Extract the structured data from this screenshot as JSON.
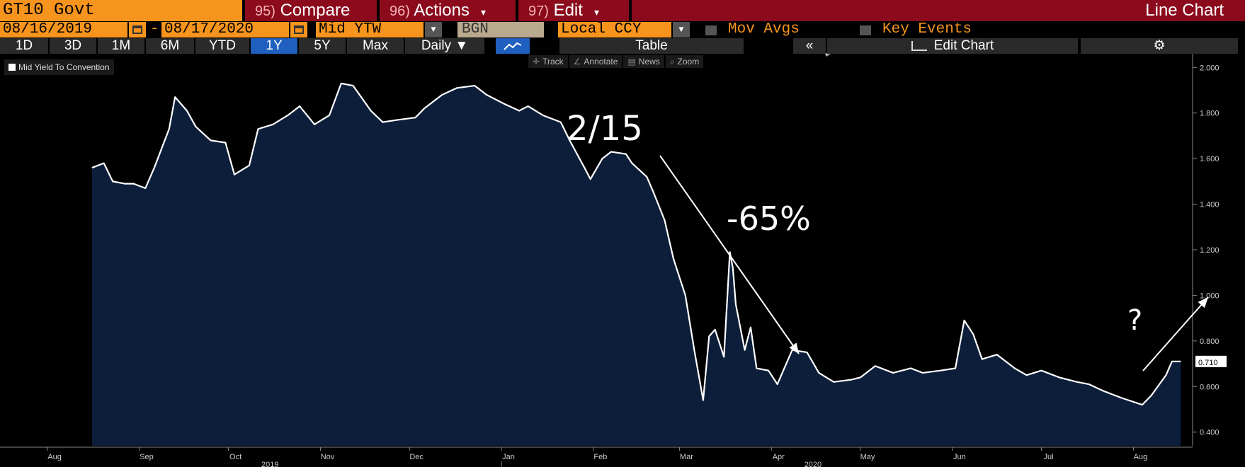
{
  "header": {
    "ticker": "GT10 Govt",
    "compare": {
      "num": "95)",
      "label": "Compare"
    },
    "actions": {
      "num": "96)",
      "label": "Actions"
    },
    "edit": {
      "num": "97)",
      "label": "Edit"
    },
    "caret": "▾",
    "title": "Line Chart"
  },
  "params": {
    "start_date": "08/16/2019",
    "dash": "-",
    "end_date": "08/17/2020",
    "field": "Mid YTW",
    "source": "BGN",
    "currency": "Local CCY",
    "mov_avgs": "Mov Avgs",
    "key_events": "Key Events",
    "caret": "▼"
  },
  "tabs": {
    "periods": [
      "1D",
      "3D",
      "1M",
      "6M",
      "YTD",
      "1Y",
      "5Y",
      "Max"
    ],
    "active": "1Y",
    "frequency": "Daily ▼",
    "table": "Table",
    "collapse": "«",
    "edit_chart": "Edit Chart",
    "gear": "⚙"
  },
  "tools": {
    "track": "Track",
    "annotate": "Annotate",
    "news": "News",
    "zoom": "Zoom"
  },
  "annotations": {
    "date": "2/15",
    "pct": "-65%",
    "question": "?"
  },
  "colors": {
    "accent_orange": "#f7941d",
    "menu_red": "#8b0a1c",
    "active_tab": "#1f5fbf",
    "chart_fill": "#0c1e3a",
    "line": "#ffffff"
  },
  "chart_data": {
    "type": "area",
    "series": [
      {
        "name": "Mid Yield To Convention",
        "x": [
          "2019-08-16",
          "2019-08-20",
          "2019-08-23",
          "2019-08-27",
          "2019-08-30",
          "2019-09-03",
          "2019-09-06",
          "2019-09-11",
          "2019-09-13",
          "2019-09-17",
          "2019-09-20",
          "2019-09-25",
          "2019-09-30",
          "2019-10-03",
          "2019-10-08",
          "2019-10-11",
          "2019-10-16",
          "2019-10-21",
          "2019-10-25",
          "2019-10-30",
          "2019-11-04",
          "2019-11-08",
          "2019-11-12",
          "2019-11-18",
          "2019-11-22",
          "2019-11-27",
          "2019-12-03",
          "2019-12-06",
          "2019-12-12",
          "2019-12-17",
          "2019-12-23",
          "2019-12-27",
          "2020-01-02",
          "2020-01-07",
          "2020-01-10",
          "2020-01-15",
          "2020-01-21",
          "2020-01-24",
          "2020-01-29",
          "2020-01-31",
          "2020-02-04",
          "2020-02-07",
          "2020-02-12",
          "2020-02-14",
          "2020-02-19",
          "2020-02-21",
          "2020-02-25",
          "2020-02-28",
          "2020-03-03",
          "2020-03-06",
          "2020-03-09",
          "2020-03-11",
          "2020-03-13",
          "2020-03-16",
          "2020-03-18",
          "2020-03-19",
          "2020-03-20",
          "2020-03-23",
          "2020-03-25",
          "2020-03-27",
          "2020-03-31",
          "2020-04-03",
          "2020-04-08",
          "2020-04-13",
          "2020-04-17",
          "2020-04-22",
          "2020-04-28",
          "2020-05-01",
          "2020-05-06",
          "2020-05-12",
          "2020-05-18",
          "2020-05-22",
          "2020-05-28",
          "2020-06-02",
          "2020-06-05",
          "2020-06-08",
          "2020-06-11",
          "2020-06-16",
          "2020-06-22",
          "2020-06-26",
          "2020-07-01",
          "2020-07-07",
          "2020-07-13",
          "2020-07-17",
          "2020-07-22",
          "2020-07-28",
          "2020-08-04",
          "2020-08-07",
          "2020-08-12",
          "2020-08-14",
          "2020-08-17"
        ],
        "y": [
          1.56,
          1.58,
          1.5,
          1.49,
          1.49,
          1.47,
          1.56,
          1.73,
          1.87,
          1.81,
          1.74,
          1.68,
          1.67,
          1.53,
          1.57,
          1.73,
          1.75,
          1.79,
          1.83,
          1.75,
          1.79,
          1.93,
          1.92,
          1.81,
          1.76,
          1.77,
          1.78,
          1.82,
          1.88,
          1.91,
          1.92,
          1.88,
          1.84,
          1.81,
          1.83,
          1.79,
          1.76,
          1.68,
          1.56,
          1.51,
          1.6,
          1.63,
          1.62,
          1.58,
          1.52,
          1.46,
          1.33,
          1.16,
          1.0,
          0.76,
          0.54,
          0.82,
          0.85,
          0.73,
          1.19,
          1.12,
          0.96,
          0.76,
          0.86,
          0.68,
          0.67,
          0.61,
          0.76,
          0.75,
          0.66,
          0.62,
          0.63,
          0.64,
          0.69,
          0.66,
          0.68,
          0.66,
          0.67,
          0.68,
          0.89,
          0.83,
          0.72,
          0.74,
          0.68,
          0.65,
          0.67,
          0.64,
          0.62,
          0.61,
          0.58,
          0.55,
          0.52,
          0.56,
          0.65,
          0.71,
          0.71
        ]
      }
    ],
    "last_value_label": "0.710",
    "y_axis": {
      "ticks": [
        "0.400",
        "0.600",
        "0.800",
        "1.000",
        "1.200",
        "1.400",
        "1.600",
        "1.800",
        "2.000"
      ],
      "ylim": [
        0.34,
        2.06
      ]
    },
    "x_axis": {
      "months": [
        {
          "label": "Aug",
          "date": "2019-08-01"
        },
        {
          "label": "Sep",
          "date": "2019-09-01"
        },
        {
          "label": "Oct",
          "date": "2019-10-01"
        },
        {
          "label": "Nov",
          "date": "2019-11-01"
        },
        {
          "label": "Dec",
          "date": "2019-12-01"
        },
        {
          "label": "Jan",
          "date": "2020-01-01"
        },
        {
          "label": "Feb",
          "date": "2020-02-01"
        },
        {
          "label": "Mar",
          "date": "2020-03-01"
        },
        {
          "label": "Apr",
          "date": "2020-04-01"
        },
        {
          "label": "May",
          "date": "2020-05-01"
        },
        {
          "label": "Jun",
          "date": "2020-06-01"
        },
        {
          "label": "Jul",
          "date": "2020-07-01"
        },
        {
          "label": "Aug",
          "date": "2020-08-01"
        }
      ],
      "years": [
        {
          "label": "2019",
          "date": "2019-10-15"
        },
        {
          "label": "2020",
          "date": "2020-04-15"
        }
      ],
      "xlim": [
        "2019-07-16",
        "2020-08-20"
      ]
    },
    "grid": false,
    "legend_position": "top-left"
  }
}
